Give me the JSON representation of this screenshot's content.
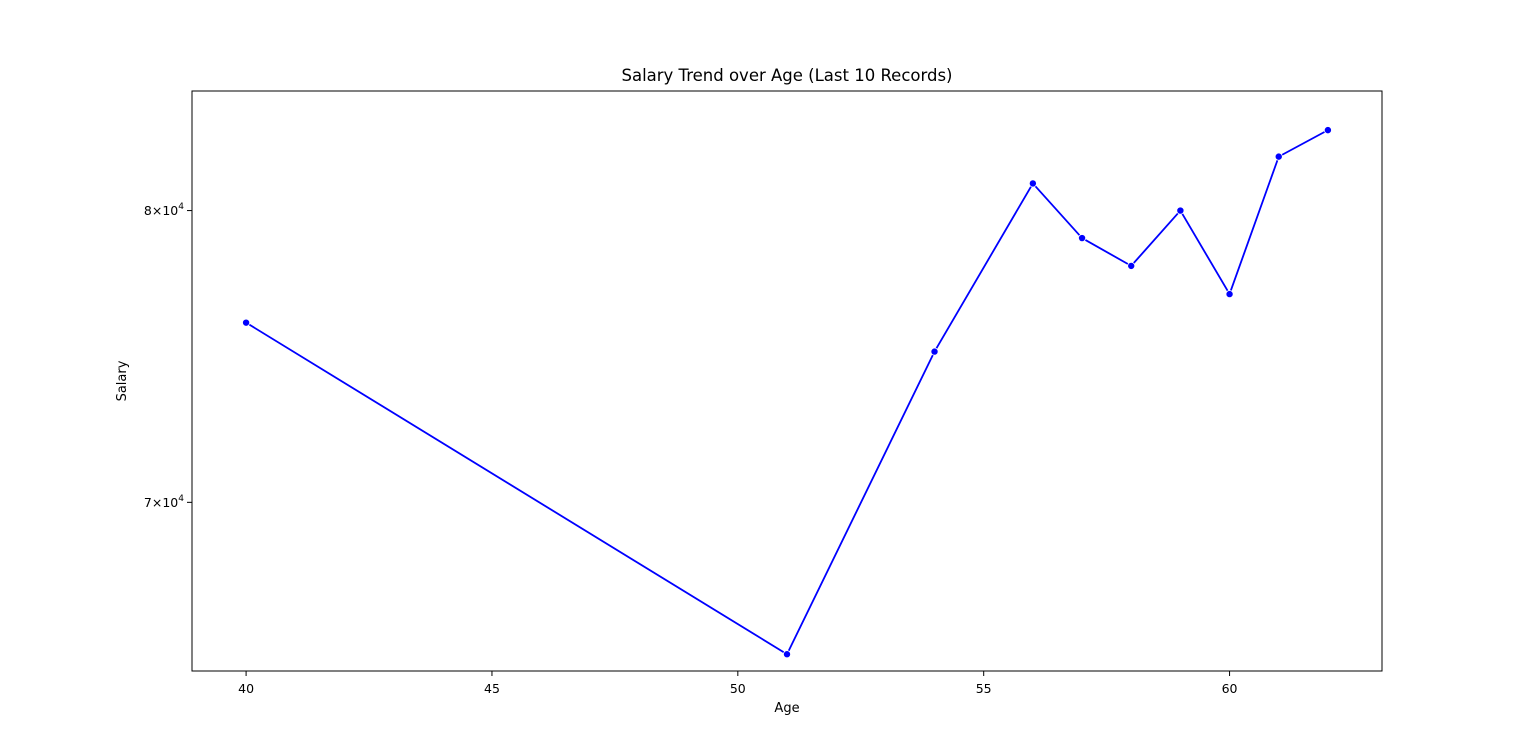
{
  "chart_data": {
    "type": "line",
    "title": "Salary Trend over Age (Last 10 Records)",
    "xlabel": "Age",
    "ylabel": "Salary",
    "yscale": "log",
    "grid": false,
    "legend": "none",
    "color": "#0000ff",
    "xlim": [
      38.9,
      63.1
    ],
    "ylim": [
      64800,
      84500
    ],
    "xticks": [
      {
        "value": 40,
        "label": "40"
      },
      {
        "value": 45,
        "label": "45"
      },
      {
        "value": 50,
        "label": "50"
      },
      {
        "value": 55,
        "label": "55"
      },
      {
        "value": 60,
        "label": "60"
      }
    ],
    "yticks": [
      {
        "value": 70000,
        "mantissa": "7",
        "base": "10",
        "exp": "4"
      },
      {
        "value": 80000,
        "mantissa": "8",
        "base": "10",
        "exp": "4"
      }
    ],
    "x": [
      40,
      51,
      54,
      56,
      57,
      58,
      59,
      60,
      61,
      62
    ],
    "y": [
      76000,
      65300,
      75000,
      81000,
      79000,
      78000,
      80000,
      77000,
      82000,
      83000
    ]
  }
}
